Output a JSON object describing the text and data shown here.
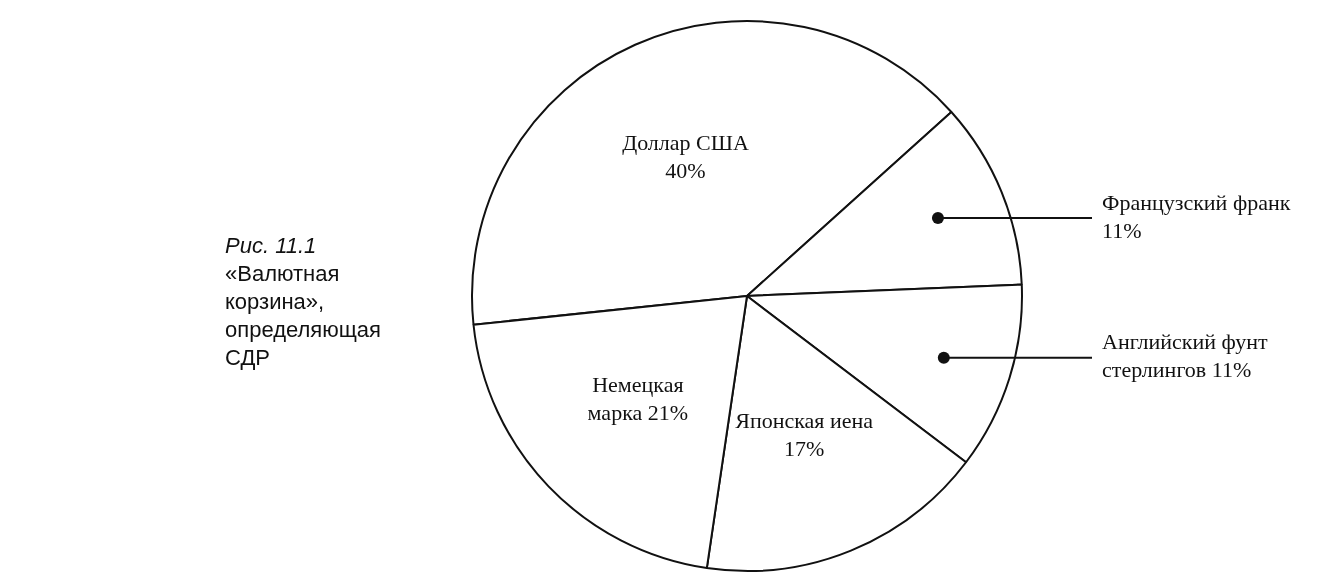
{
  "chart_data": {
    "type": "pie",
    "title": "Рис. 11.1",
    "subtitle": "«Валютная корзина», определяющая СДР",
    "categories": [
      "Доллар США",
      "Французский франк",
      "Английский фунт стерлингов",
      "Японская иена",
      "Немецкая марка"
    ],
    "values": [
      40,
      11,
      11,
      17,
      21
    ],
    "value_labels": [
      "40%",
      "11%",
      "11%",
      "17%",
      "21%"
    ],
    "colors": [
      "#ffffff",
      "#ffffff",
      "#ffffff",
      "#ffffff",
      "#ffffff"
    ],
    "legend": false
  }
}
